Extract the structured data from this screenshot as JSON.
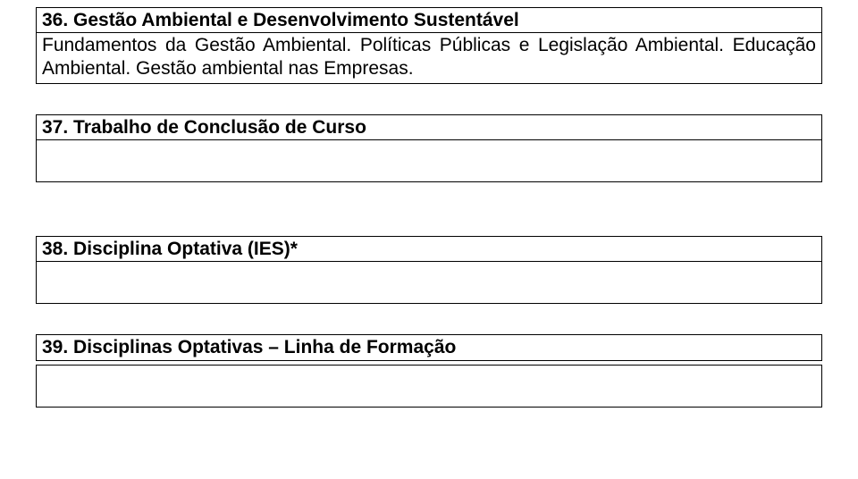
{
  "sections": {
    "s36": {
      "heading": "36. Gestão Ambiental e Desenvolvimento Sustentável",
      "body": "Fundamentos da Gestão Ambiental. Políticas Públicas e Legislação Ambiental. Educação Ambiental. Gestão ambiental nas Empresas."
    },
    "s37": {
      "heading": "37. Trabalho de Conclusão de Curso"
    },
    "s38": {
      "heading": "38. Disciplina Optativa (IES)*"
    },
    "s39": {
      "heading": "39. Disciplinas Optativas – Linha de Formação"
    }
  }
}
